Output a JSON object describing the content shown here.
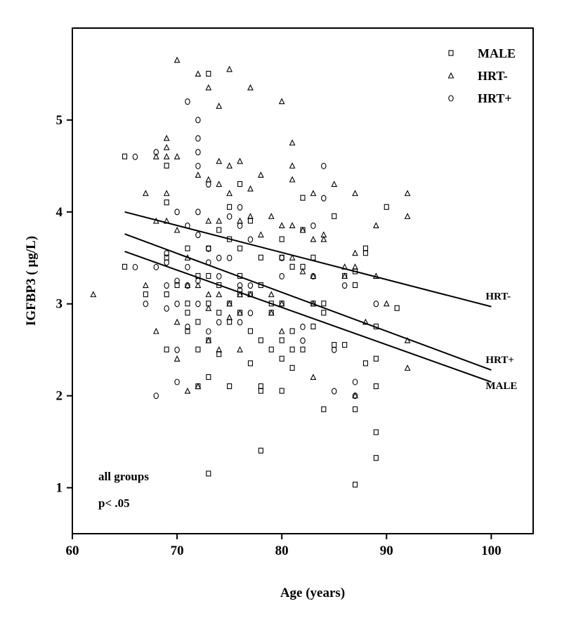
{
  "chart_data": {
    "type": "scatter",
    "title": "",
    "xlabel": "Age (years)",
    "ylabel": "IGFBP3 ( µg/L)",
    "xlim": [
      60,
      104
    ],
    "ylim": [
      0.5,
      6.0
    ],
    "xticks": [
      60,
      70,
      80,
      90,
      100
    ],
    "yticks": [
      1,
      2,
      3,
      4,
      5
    ],
    "grid": false,
    "legend_position": "top-right",
    "legend": [
      {
        "label": "MALE",
        "symbol": "□",
        "series": "MALE"
      },
      {
        "label": "HRT-",
        "symbol": "△",
        "series": "HRT-"
      },
      {
        "label": "HRT+",
        "symbol": "○",
        "series": "HRT+"
      }
    ],
    "series": [
      {
        "name": "MALE",
        "symbol": "□",
        "points": [
          [
            65,
            4.6
          ],
          [
            65,
            3.4
          ],
          [
            67,
            3.1
          ],
          [
            69,
            3.1
          ],
          [
            69,
            4.1
          ],
          [
            69,
            4.5
          ],
          [
            69,
            3.5
          ],
          [
            69,
            2.5
          ],
          [
            70,
            3.2
          ],
          [
            71,
            3.6
          ],
          [
            71,
            3.0
          ],
          [
            71,
            2.9
          ],
          [
            71,
            2.7
          ],
          [
            72,
            2.8
          ],
          [
            72,
            2.5
          ],
          [
            72,
            2.1
          ],
          [
            72,
            3.3
          ],
          [
            73,
            3.6
          ],
          [
            73,
            3.3
          ],
          [
            73,
            3.0
          ],
          [
            73,
            2.6
          ],
          [
            73,
            2.2
          ],
          [
            73,
            1.15
          ],
          [
            73,
            5.5
          ],
          [
            74,
            3.8
          ],
          [
            74,
            3.2
          ],
          [
            74,
            2.9
          ],
          [
            74,
            2.45
          ],
          [
            75,
            3.7
          ],
          [
            75,
            3.0
          ],
          [
            75,
            2.8
          ],
          [
            75,
            2.1
          ],
          [
            75,
            4.05
          ],
          [
            76,
            4.3
          ],
          [
            76,
            3.6
          ],
          [
            76,
            3.3
          ],
          [
            76,
            3.1
          ],
          [
            76,
            2.9
          ],
          [
            77,
            3.9
          ],
          [
            77,
            3.1
          ],
          [
            77,
            2.7
          ],
          [
            77,
            2.35
          ],
          [
            78,
            3.5
          ],
          [
            78,
            3.2
          ],
          [
            78,
            2.6
          ],
          [
            78,
            2.1
          ],
          [
            78,
            2.05
          ],
          [
            78,
            1.4
          ],
          [
            79,
            3.0
          ],
          [
            79,
            2.5
          ],
          [
            79,
            2.9
          ],
          [
            80,
            3.7
          ],
          [
            80,
            3.5
          ],
          [
            80,
            3.0
          ],
          [
            80,
            2.4
          ],
          [
            80,
            2.05
          ],
          [
            80,
            2.6
          ],
          [
            81,
            3.4
          ],
          [
            81,
            2.7
          ],
          [
            81,
            2.5
          ],
          [
            81,
            2.3
          ],
          [
            82,
            3.8
          ],
          [
            82,
            3.4
          ],
          [
            82,
            2.5
          ],
          [
            82,
            4.15
          ],
          [
            83,
            3.5
          ],
          [
            83,
            3.0
          ],
          [
            83,
            2.75
          ],
          [
            84,
            2.9
          ],
          [
            84,
            3.0
          ],
          [
            84,
            1.85
          ],
          [
            85,
            3.95
          ],
          [
            85,
            2.55
          ],
          [
            86,
            3.3
          ],
          [
            86,
            2.55
          ],
          [
            87,
            3.35
          ],
          [
            87,
            3.2
          ],
          [
            87,
            1.85
          ],
          [
            87,
            1.03
          ],
          [
            88,
            3.6
          ],
          [
            88,
            3.55
          ],
          [
            88,
            2.35
          ],
          [
            89,
            2.75
          ],
          [
            89,
            2.4
          ],
          [
            89,
            2.1
          ],
          [
            89,
            1.6
          ],
          [
            89,
            1.32
          ],
          [
            90,
            4.05
          ],
          [
            91,
            2.95
          ]
        ]
      },
      {
        "name": "HRT-",
        "symbol": "△",
        "points": [
          [
            62,
            3.1
          ],
          [
            67,
            4.2
          ],
          [
            67,
            3.2
          ],
          [
            68,
            2.7
          ],
          [
            68,
            3.9
          ],
          [
            68,
            4.6
          ],
          [
            69,
            4.8
          ],
          [
            69,
            4.7
          ],
          [
            69,
            4.6
          ],
          [
            69,
            4.2
          ],
          [
            69,
            3.9
          ],
          [
            70,
            5.65
          ],
          [
            70,
            4.6
          ],
          [
            70,
            3.8
          ],
          [
            70,
            2.8
          ],
          [
            70,
            2.4
          ],
          [
            71,
            3.5
          ],
          [
            71,
            3.2
          ],
          [
            71,
            2.05
          ],
          [
            72,
            5.5
          ],
          [
            72,
            4.4
          ],
          [
            72,
            3.2
          ],
          [
            72,
            2.1
          ],
          [
            73,
            5.35
          ],
          [
            73,
            4.35
          ],
          [
            73,
            3.9
          ],
          [
            73,
            3.1
          ],
          [
            73,
            2.6
          ],
          [
            73,
            2.95
          ],
          [
            74,
            5.15
          ],
          [
            74,
            4.55
          ],
          [
            74,
            4.3
          ],
          [
            74,
            3.9
          ],
          [
            74,
            3.1
          ],
          [
            74,
            2.5
          ],
          [
            75,
            5.55
          ],
          [
            75,
            4.5
          ],
          [
            75,
            4.2
          ],
          [
            75,
            3.0
          ],
          [
            75,
            2.85
          ],
          [
            76,
            4.55
          ],
          [
            76,
            3.9
          ],
          [
            76,
            3.1
          ],
          [
            76,
            2.9
          ],
          [
            76,
            2.5
          ],
          [
            77,
            5.35
          ],
          [
            77,
            4.25
          ],
          [
            77,
            3.95
          ],
          [
            77,
            3.1
          ],
          [
            78,
            4.4
          ],
          [
            78,
            3.75
          ],
          [
            79,
            3.95
          ],
          [
            79,
            3.1
          ],
          [
            79,
            2.9
          ],
          [
            80,
            5.2
          ],
          [
            80,
            3.85
          ],
          [
            80,
            3.0
          ],
          [
            80,
            2.7
          ],
          [
            81,
            4.75
          ],
          [
            81,
            4.5
          ],
          [
            81,
            4.35
          ],
          [
            81,
            3.85
          ],
          [
            81,
            3.5
          ],
          [
            82,
            3.8
          ],
          [
            82,
            3.35
          ],
          [
            83,
            4.2
          ],
          [
            83,
            3.7
          ],
          [
            83,
            3.3
          ],
          [
            83,
            3.0
          ],
          [
            83,
            2.2
          ],
          [
            84,
            3.7
          ],
          [
            84,
            3.75
          ],
          [
            85,
            4.3
          ],
          [
            86,
            3.4
          ],
          [
            86,
            3.3
          ],
          [
            87,
            4.2
          ],
          [
            87,
            3.55
          ],
          [
            87,
            3.4
          ],
          [
            87,
            2.0
          ],
          [
            88,
            2.8
          ],
          [
            89,
            3.85
          ],
          [
            89,
            3.3
          ],
          [
            90,
            3.0
          ],
          [
            92,
            4.2
          ],
          [
            92,
            3.95
          ],
          [
            92,
            2.6
          ],
          [
            92,
            2.3
          ]
        ]
      },
      {
        "name": "HRT+",
        "symbol": "○",
        "points": [
          [
            66,
            4.6
          ],
          [
            66,
            3.4
          ],
          [
            67,
            3.0
          ],
          [
            68,
            4.65
          ],
          [
            68,
            3.4
          ],
          [
            68,
            2.0
          ],
          [
            69,
            3.55
          ],
          [
            69,
            3.45
          ],
          [
            69,
            3.2
          ],
          [
            69,
            2.95
          ],
          [
            70,
            4.0
          ],
          [
            70,
            3.25
          ],
          [
            70,
            3.0
          ],
          [
            70,
            2.5
          ],
          [
            70,
            2.15
          ],
          [
            71,
            5.2
          ],
          [
            71,
            3.85
          ],
          [
            71,
            3.4
          ],
          [
            71,
            3.2
          ],
          [
            71,
            2.75
          ],
          [
            72,
            5.0
          ],
          [
            72,
            4.8
          ],
          [
            72,
            4.65
          ],
          [
            72,
            4.5
          ],
          [
            72,
            4.0
          ],
          [
            72,
            3.75
          ],
          [
            72,
            3.25
          ],
          [
            72,
            3.0
          ],
          [
            73,
            4.3
          ],
          [
            73,
            3.6
          ],
          [
            73,
            3.45
          ],
          [
            73,
            2.7
          ],
          [
            74,
            3.5
          ],
          [
            74,
            3.3
          ],
          [
            74,
            2.8
          ],
          [
            75,
            3.95
          ],
          [
            75,
            3.5
          ],
          [
            76,
            4.05
          ],
          [
            76,
            3.85
          ],
          [
            76,
            3.2
          ],
          [
            76,
            3.15
          ],
          [
            76,
            2.8
          ],
          [
            77,
            3.7
          ],
          [
            77,
            3.2
          ],
          [
            77,
            2.9
          ],
          [
            80,
            3.5
          ],
          [
            80,
            3.3
          ],
          [
            82,
            2.75
          ],
          [
            82,
            2.6
          ],
          [
            83,
            3.85
          ],
          [
            83,
            3.3
          ],
          [
            84,
            4.5
          ],
          [
            84,
            4.15
          ],
          [
            85,
            2.5
          ],
          [
            85,
            2.05
          ],
          [
            86,
            3.2
          ],
          [
            87,
            2.15
          ],
          [
            87,
            2.0
          ],
          [
            89,
            3.0
          ]
        ]
      }
    ],
    "regression_lines": [
      {
        "name": "HRT-",
        "label": "HRT-",
        "x": [
          65,
          100
        ],
        "y": [
          4.0,
          2.97
        ]
      },
      {
        "name": "HRT+",
        "label": "HRT+",
        "x": [
          65,
          100
        ],
        "y": [
          3.76,
          2.28
        ]
      },
      {
        "name": "MALE",
        "label": "MALE",
        "x": [
          65,
          100
        ],
        "y": [
          3.57,
          2.15
        ]
      }
    ],
    "annotations": [
      "all groups",
      "p< .05"
    ]
  }
}
